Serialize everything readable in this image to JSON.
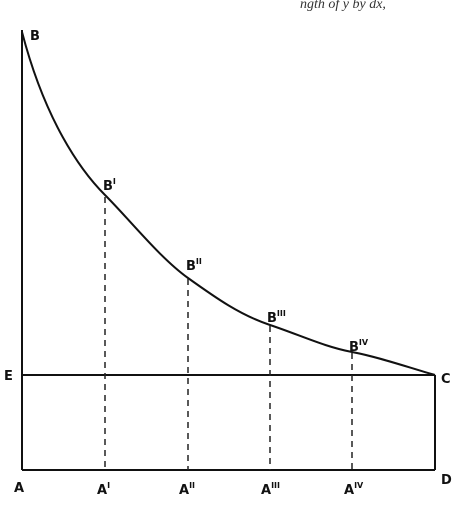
{
  "header_fragment": "ngth of y by dx,",
  "nodes": [
    {
      "label": "B",
      "sup": ""
    },
    {
      "label": "B",
      "sup": "I"
    },
    {
      "label": "B",
      "sup": "II"
    },
    {
      "label": "B",
      "sup": "III"
    },
    {
      "label": "B",
      "sup": "IV"
    },
    {
      "label": "A",
      "sup": ""
    },
    {
      "label": "A",
      "sup": "I"
    },
    {
      "label": "A",
      "sup": "II"
    },
    {
      "label": "A",
      "sup": "III"
    },
    {
      "label": "A",
      "sup": "IV"
    },
    {
      "label": "E",
      "sup": ""
    },
    {
      "label": "C",
      "sup": ""
    },
    {
      "label": "D",
      "sup": ""
    }
  ]
}
